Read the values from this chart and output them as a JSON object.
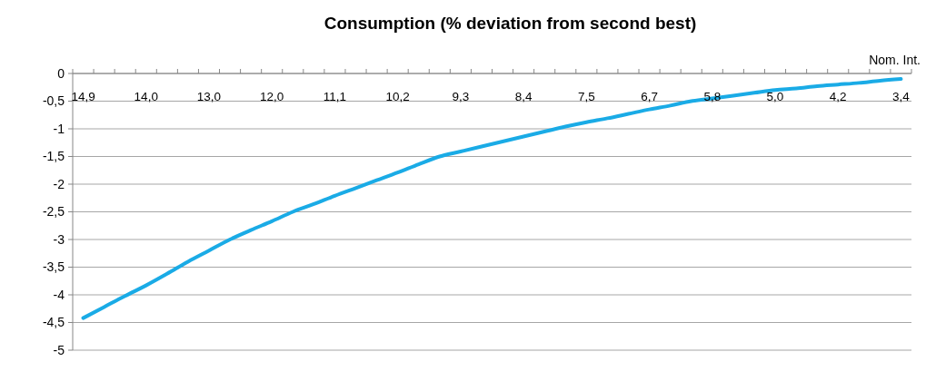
{
  "chart_data": {
    "type": "line",
    "title": "Consumption (% deviation from second best)",
    "xlabel": "Nom. Int.",
    "categories": [
      "14,9",
      null,
      null,
      "14,0",
      null,
      null,
      "13,0",
      null,
      null,
      "12,0",
      null,
      null,
      "11,1",
      null,
      null,
      "10,2",
      null,
      null,
      "9,3",
      null,
      null,
      "8,4",
      null,
      null,
      "7,5",
      null,
      null,
      "6,7",
      null,
      null,
      "5,8",
      null,
      null,
      "5,0",
      null,
      null,
      "4,2",
      null,
      null,
      "3,4"
    ],
    "series": [
      {
        "color": "#1aabe6",
        "values": [
          -4.42,
          -4.22,
          -4.02,
          -3.83,
          -3.62,
          -3.4,
          -3.2,
          -3.0,
          -2.83,
          -2.67,
          -2.5,
          -2.36,
          -2.21,
          -2.07,
          -1.93,
          -1.79,
          -1.64,
          -1.5,
          -1.41,
          -1.32,
          -1.23,
          -1.14,
          -1.05,
          -0.96,
          -0.88,
          -0.81,
          -0.73,
          -0.65,
          -0.58,
          -0.5,
          -0.45,
          -0.4,
          -0.35,
          -0.3,
          -0.27,
          -0.23,
          -0.2,
          -0.17,
          -0.13,
          -0.1
        ]
      }
    ],
    "ylim": [
      -5,
      0
    ],
    "yticks": [
      0,
      {
        "value": -0.5,
        "label": "-0,5"
      },
      -1,
      {
        "value": -1.5,
        "label": "-1,5"
      },
      -2,
      {
        "value": -2.5,
        "label": "-2,5"
      },
      -3,
      {
        "value": -3.5,
        "label": "-3,5"
      },
      -4,
      {
        "value": -4.5,
        "label": "-4,5"
      },
      -5
    ],
    "grid": "y",
    "marker": "none",
    "line_style": "solid"
  }
}
